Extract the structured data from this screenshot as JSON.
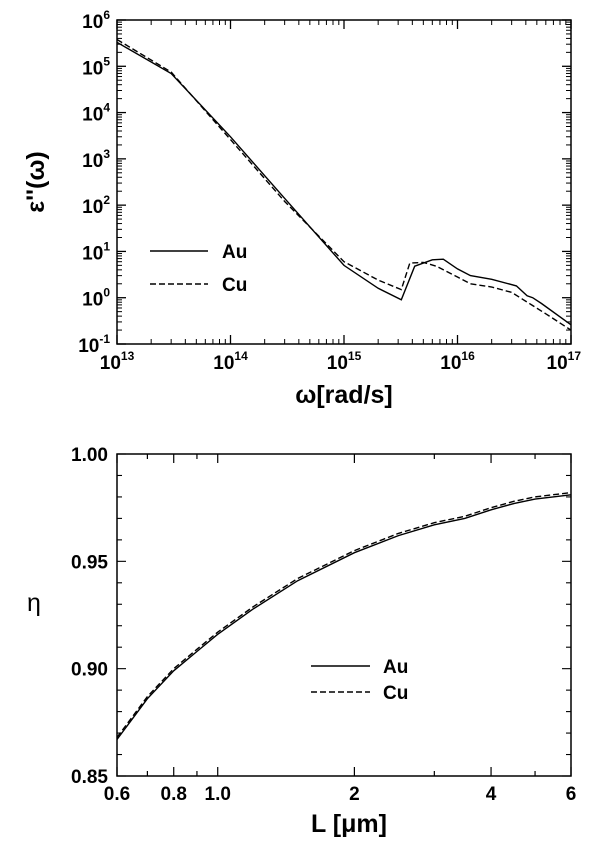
{
  "chart_data": [
    {
      "type": "line",
      "xlabel": "ω[rad/s]",
      "ylabel": "ε''(ω)",
      "xscale": "log",
      "yscale": "log",
      "xlim": [
        10000000000000.0,
        1e+17
      ],
      "ylim": [
        0.1,
        1000000
      ],
      "x_ticks": [
        {
          "base": "10",
          "exp": "13"
        },
        {
          "base": "10",
          "exp": "14"
        },
        {
          "base": "10",
          "exp": "15"
        },
        {
          "base": "10",
          "exp": "16"
        },
        {
          "base": "10",
          "exp": "17"
        }
      ],
      "y_ticks": [
        {
          "base": "10",
          "exp": "-1"
        },
        {
          "base": "10",
          "exp": "0"
        },
        {
          "base": "10",
          "exp": "1"
        },
        {
          "base": "10",
          "exp": "2"
        },
        {
          "base": "10",
          "exp": "3"
        },
        {
          "base": "10",
          "exp": "4"
        },
        {
          "base": "10",
          "exp": "5"
        },
        {
          "base": "10",
          "exp": "6"
        }
      ],
      "legend_position": "middle-left",
      "series": [
        {
          "name": "Au",
          "style": "solid",
          "x": [
            10000000000000.0,
            30000000000000.0,
            100000000000000.0,
            300000000000000.0,
            1000000000000000.0,
            2000000000000000.0,
            3200000000000000.0,
            4200000000000000.0,
            6000000000000000.0,
            7500000000000000.0,
            1e+16,
            1.3e+16,
            2e+16,
            3.3e+16,
            4.1e+16,
            4.6e+16,
            5.5e+16,
            1e+17
          ],
          "y": [
            330000,
            70000,
            3000,
            140,
            5,
            1.6,
            0.9,
            4.8,
            6.6,
            6.8,
            4.2,
            3.0,
            2.5,
            1.8,
            1.1,
            1.0,
            0.75,
            0.26
          ]
        },
        {
          "name": "Cu",
          "style": "dashed",
          "x": [
            10000000000000.0,
            30000000000000.0,
            100000000000000.0,
            300000000000000.0,
            1000000000000000.0,
            2000000000000000.0,
            3200000000000000.0,
            3800000000000000.0,
            5000000000000000.0,
            6500000000000000.0,
            1e+16,
            1.3e+16,
            2e+16,
            3e+16,
            4.5e+16,
            6e+16,
            1e+17
          ],
          "y": [
            380000,
            75000,
            2600,
            120,
            6,
            2.4,
            1.5,
            5.6,
            5.8,
            4.8,
            2.8,
            2.0,
            1.7,
            1.3,
            0.7,
            0.45,
            0.2
          ]
        }
      ]
    },
    {
      "type": "line",
      "xlabel": "L [μm]",
      "ylabel": "η",
      "xscale": "log",
      "yscale": "linear",
      "xlim": [
        0.6,
        6
      ],
      "ylim": [
        0.85,
        1.0
      ],
      "x_ticks": [
        "0.6",
        "0.8",
        "1.0",
        "2",
        "4",
        "6"
      ],
      "x_tick_values": [
        0.6,
        0.8,
        1.0,
        2,
        4,
        6
      ],
      "y_ticks": [
        "0.85",
        "0.90",
        "0.95",
        "1.00"
      ],
      "y_tick_values": [
        0.85,
        0.9,
        0.95,
        1.0
      ],
      "legend_position": "center",
      "series": [
        {
          "name": "Au",
          "style": "solid",
          "x": [
            0.6,
            0.7,
            0.8,
            0.9,
            1.0,
            1.2,
            1.5,
            2.0,
            2.5,
            3.0,
            3.5,
            4.0,
            4.5,
            5.0,
            6.0
          ],
          "y": [
            0.867,
            0.886,
            0.899,
            0.908,
            0.916,
            0.928,
            0.941,
            0.954,
            0.962,
            0.967,
            0.97,
            0.974,
            0.977,
            0.979,
            0.981
          ]
        },
        {
          "name": "Cu",
          "style": "dashed",
          "x": [
            0.6,
            0.7,
            0.8,
            0.9,
            1.0,
            1.2,
            1.5,
            2.0,
            2.5,
            3.0,
            3.5,
            4.0,
            4.5,
            5.0,
            6.0
          ],
          "y": [
            0.868,
            0.887,
            0.9,
            0.909,
            0.917,
            0.929,
            0.942,
            0.955,
            0.963,
            0.968,
            0.971,
            0.975,
            0.978,
            0.98,
            0.982
          ]
        }
      ]
    }
  ]
}
